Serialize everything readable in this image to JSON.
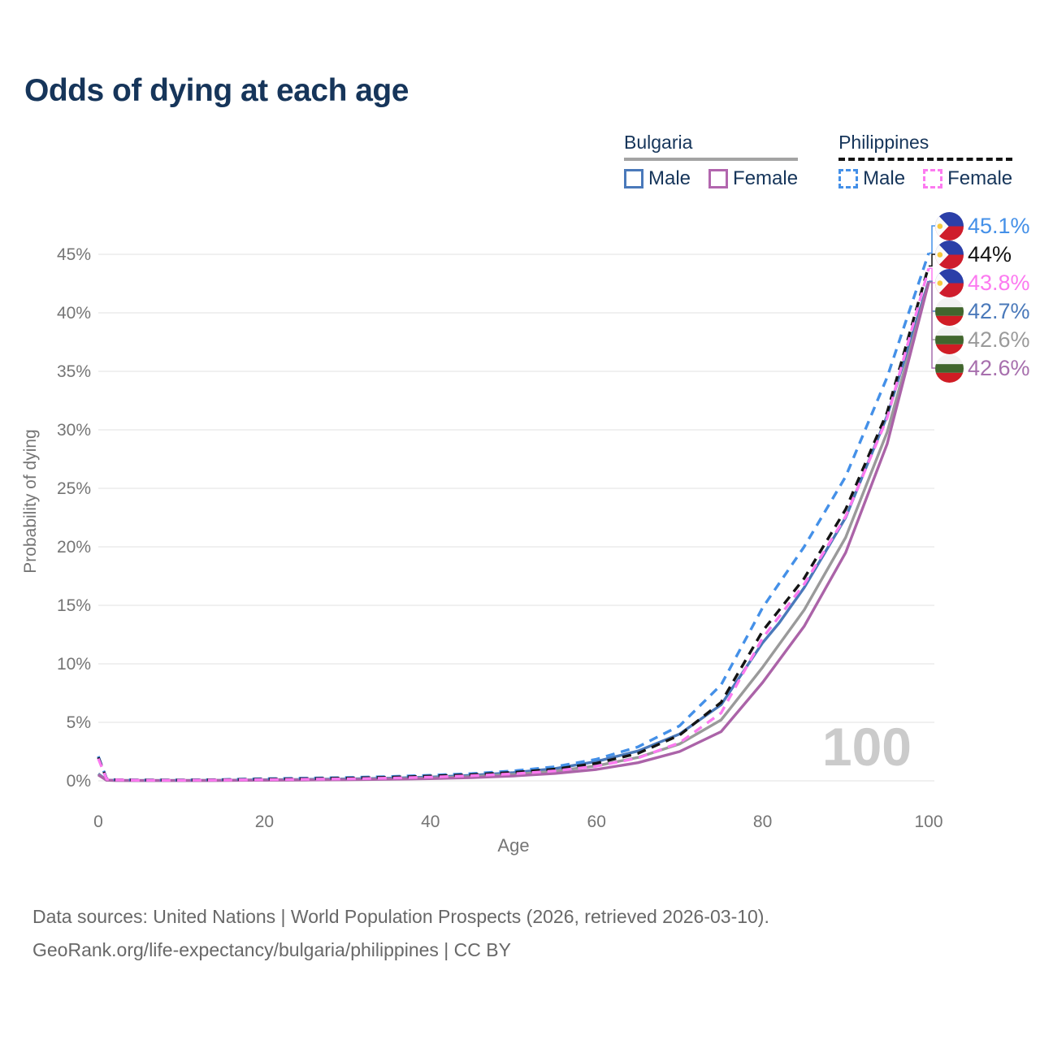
{
  "title": "Odds of dying at each age",
  "legend": {
    "groups": [
      {
        "country": "Bulgaria",
        "underline_style": "solid",
        "underline_color": "#a3a3a3",
        "items": [
          {
            "label": "Male",
            "color": "#4a79ba",
            "style": "solid"
          },
          {
            "label": "Female",
            "color": "#b266ae",
            "style": "solid"
          }
        ]
      },
      {
        "country": "Philippines",
        "underline_style": "dashed",
        "underline_color": "#141414",
        "items": [
          {
            "label": "Male",
            "color": "#4490e8",
            "style": "dashed"
          },
          {
            "label": "Female",
            "color": "#fc7af0",
            "style": "dashed"
          }
        ]
      }
    ]
  },
  "chart_data": {
    "type": "line",
    "title": "Odds of dying at each age",
    "xlabel": "Age",
    "ylabel": "Probability of dying",
    "xlim": [
      0,
      100
    ],
    "ylim": [
      0,
      45
    ],
    "xticks": [
      0,
      20,
      40,
      60,
      80,
      100
    ],
    "yticks": [
      0,
      5,
      10,
      15,
      20,
      25,
      30,
      35,
      40,
      45
    ],
    "ytick_suffix": "%",
    "grid": "horizontal",
    "gridline_color": "#e7e7e7",
    "axis_text_color": "#757575",
    "watermark": "100",
    "watermark_color": "#cbcbcb",
    "series": [
      {
        "name": "Bulgaria Male",
        "country": "Bulgaria",
        "sex": "Male",
        "color": "#4a79ba",
        "dash": "solid",
        "flag": "bulgaria",
        "end_label": "42.7%",
        "end_label_color": "#4a79ba",
        "points": [
          [
            0,
            0.6
          ],
          [
            1,
            0.06
          ],
          [
            2,
            0.04
          ],
          [
            5,
            0.03
          ],
          [
            10,
            0.03
          ],
          [
            15,
            0.05
          ],
          [
            20,
            0.09
          ],
          [
            25,
            0.12
          ],
          [
            30,
            0.16
          ],
          [
            35,
            0.22
          ],
          [
            40,
            0.32
          ],
          [
            45,
            0.47
          ],
          [
            50,
            0.7
          ],
          [
            55,
            1.05
          ],
          [
            60,
            1.65
          ],
          [
            65,
            2.55
          ],
          [
            70,
            4.0
          ],
          [
            75,
            6.5
          ],
          [
            80,
            11.8
          ],
          [
            82,
            13.5
          ],
          [
            85,
            16.5
          ],
          [
            90,
            22.5
          ],
          [
            95,
            31.2
          ],
          [
            100,
            42.7
          ]
        ]
      },
      {
        "name": "Bulgaria Total",
        "country": "Bulgaria",
        "sex": "Both sexes",
        "color": "#9a9a9a",
        "dash": "solid",
        "flag": "bulgaria",
        "end_label": "42.6%",
        "end_label_color": "#9a9a9a",
        "points": [
          [
            0,
            0.55
          ],
          [
            1,
            0.05
          ],
          [
            2,
            0.04
          ],
          [
            5,
            0.03
          ],
          [
            10,
            0.03
          ],
          [
            15,
            0.04
          ],
          [
            20,
            0.07
          ],
          [
            25,
            0.09
          ],
          [
            30,
            0.12
          ],
          [
            35,
            0.17
          ],
          [
            40,
            0.25
          ],
          [
            45,
            0.37
          ],
          [
            50,
            0.55
          ],
          [
            55,
            0.82
          ],
          [
            60,
            1.28
          ],
          [
            65,
            2.0
          ],
          [
            70,
            3.15
          ],
          [
            75,
            5.2
          ],
          [
            80,
            9.7
          ],
          [
            85,
            14.6
          ],
          [
            90,
            20.8
          ],
          [
            95,
            29.8
          ],
          [
            100,
            42.6
          ]
        ]
      },
      {
        "name": "Bulgaria Female",
        "country": "Bulgaria",
        "sex": "Female",
        "color": "#ab63a8",
        "dash": "solid",
        "flag": "bulgaria",
        "end_label": "42.6%",
        "end_label_color": "#a76fad",
        "points": [
          [
            0,
            0.5
          ],
          [
            1,
            0.05
          ],
          [
            2,
            0.03
          ],
          [
            5,
            0.02
          ],
          [
            10,
            0.02
          ],
          [
            15,
            0.03
          ],
          [
            20,
            0.05
          ],
          [
            25,
            0.07
          ],
          [
            30,
            0.09
          ],
          [
            35,
            0.13
          ],
          [
            40,
            0.19
          ],
          [
            45,
            0.28
          ],
          [
            50,
            0.42
          ],
          [
            55,
            0.63
          ],
          [
            60,
            0.97
          ],
          [
            65,
            1.55
          ],
          [
            70,
            2.5
          ],
          [
            75,
            4.2
          ],
          [
            80,
            8.4
          ],
          [
            85,
            13.2
          ],
          [
            90,
            19.5
          ],
          [
            95,
            28.8
          ],
          [
            100,
            42.6
          ]
        ]
      },
      {
        "name": "Philippines Male",
        "country": "Philippines",
        "sex": "Male",
        "color": "#4490e8",
        "dash": "dashed",
        "flag": "philippines",
        "end_label": "45.1%",
        "end_label_color": "#4490e8",
        "points": [
          [
            0,
            2.1
          ],
          [
            1,
            0.18
          ],
          [
            2,
            0.1
          ],
          [
            5,
            0.07
          ],
          [
            10,
            0.07
          ],
          [
            15,
            0.11
          ],
          [
            20,
            0.18
          ],
          [
            25,
            0.23
          ],
          [
            30,
            0.28
          ],
          [
            35,
            0.36
          ],
          [
            40,
            0.47
          ],
          [
            45,
            0.62
          ],
          [
            50,
            0.85
          ],
          [
            55,
            1.2
          ],
          [
            60,
            1.85
          ],
          [
            65,
            2.9
          ],
          [
            70,
            4.7
          ],
          [
            75,
            8.2
          ],
          [
            80,
            14.8
          ],
          [
            85,
            20.0
          ],
          [
            90,
            26.0
          ],
          [
            95,
            34.5
          ],
          [
            100,
            45.1
          ]
        ]
      },
      {
        "name": "Philippines Total",
        "country": "Philippines",
        "sex": "Both sexes",
        "color": "#141414",
        "dash": "dashed",
        "flag": "philippines",
        "end_label": "44%",
        "end_label_color": "#141414",
        "points": [
          [
            0,
            2.0
          ],
          [
            1,
            0.16
          ],
          [
            2,
            0.09
          ],
          [
            5,
            0.06
          ],
          [
            10,
            0.06
          ],
          [
            15,
            0.09
          ],
          [
            20,
            0.14
          ],
          [
            25,
            0.18
          ],
          [
            30,
            0.23
          ],
          [
            35,
            0.3
          ],
          [
            40,
            0.4
          ],
          [
            45,
            0.53
          ],
          [
            50,
            0.72
          ],
          [
            55,
            1.0
          ],
          [
            60,
            1.5
          ],
          [
            65,
            2.35
          ],
          [
            70,
            3.9
          ],
          [
            75,
            6.7
          ],
          [
            80,
            12.8
          ],
          [
            85,
            17.3
          ],
          [
            90,
            23.2
          ],
          [
            95,
            31.5
          ],
          [
            100,
            44.0
          ]
        ]
      },
      {
        "name": "Philippines Female",
        "country": "Philippines",
        "sex": "Female",
        "color": "#fc7af0",
        "dash": "dashed",
        "flag": "philippines",
        "end_label": "43.8%",
        "end_label_color": "#fc7af0",
        "points": [
          [
            0,
            1.9
          ],
          [
            1,
            0.14
          ],
          [
            2,
            0.08
          ],
          [
            5,
            0.05
          ],
          [
            10,
            0.05
          ],
          [
            15,
            0.07
          ],
          [
            20,
            0.1
          ],
          [
            25,
            0.13
          ],
          [
            30,
            0.17
          ],
          [
            35,
            0.23
          ],
          [
            40,
            0.32
          ],
          [
            45,
            0.44
          ],
          [
            50,
            0.6
          ],
          [
            55,
            0.85
          ],
          [
            60,
            1.25
          ],
          [
            65,
            1.95
          ],
          [
            70,
            3.25
          ],
          [
            75,
            5.8
          ],
          [
            80,
            12.2
          ],
          [
            85,
            16.8
          ],
          [
            90,
            22.6
          ],
          [
            95,
            31.0
          ],
          [
            100,
            43.8
          ]
        ]
      }
    ],
    "flag_colors": {
      "bulgaria": {
        "white": "#f2f2f2",
        "green": "#41662e",
        "red": "#d01c24"
      },
      "philippines": {
        "blue": "#2b3fa8",
        "red": "#cf1d2c",
        "triangle": "#fbfbfb",
        "sun": "#f6c83c"
      }
    }
  },
  "footer": {
    "line1": "Data sources: United Nations | World Population Prospects (2026, retrieved 2026-03-10).",
    "line2": "GeoRank.org/life-expectancy/bulgaria/philippines | CC BY"
  }
}
